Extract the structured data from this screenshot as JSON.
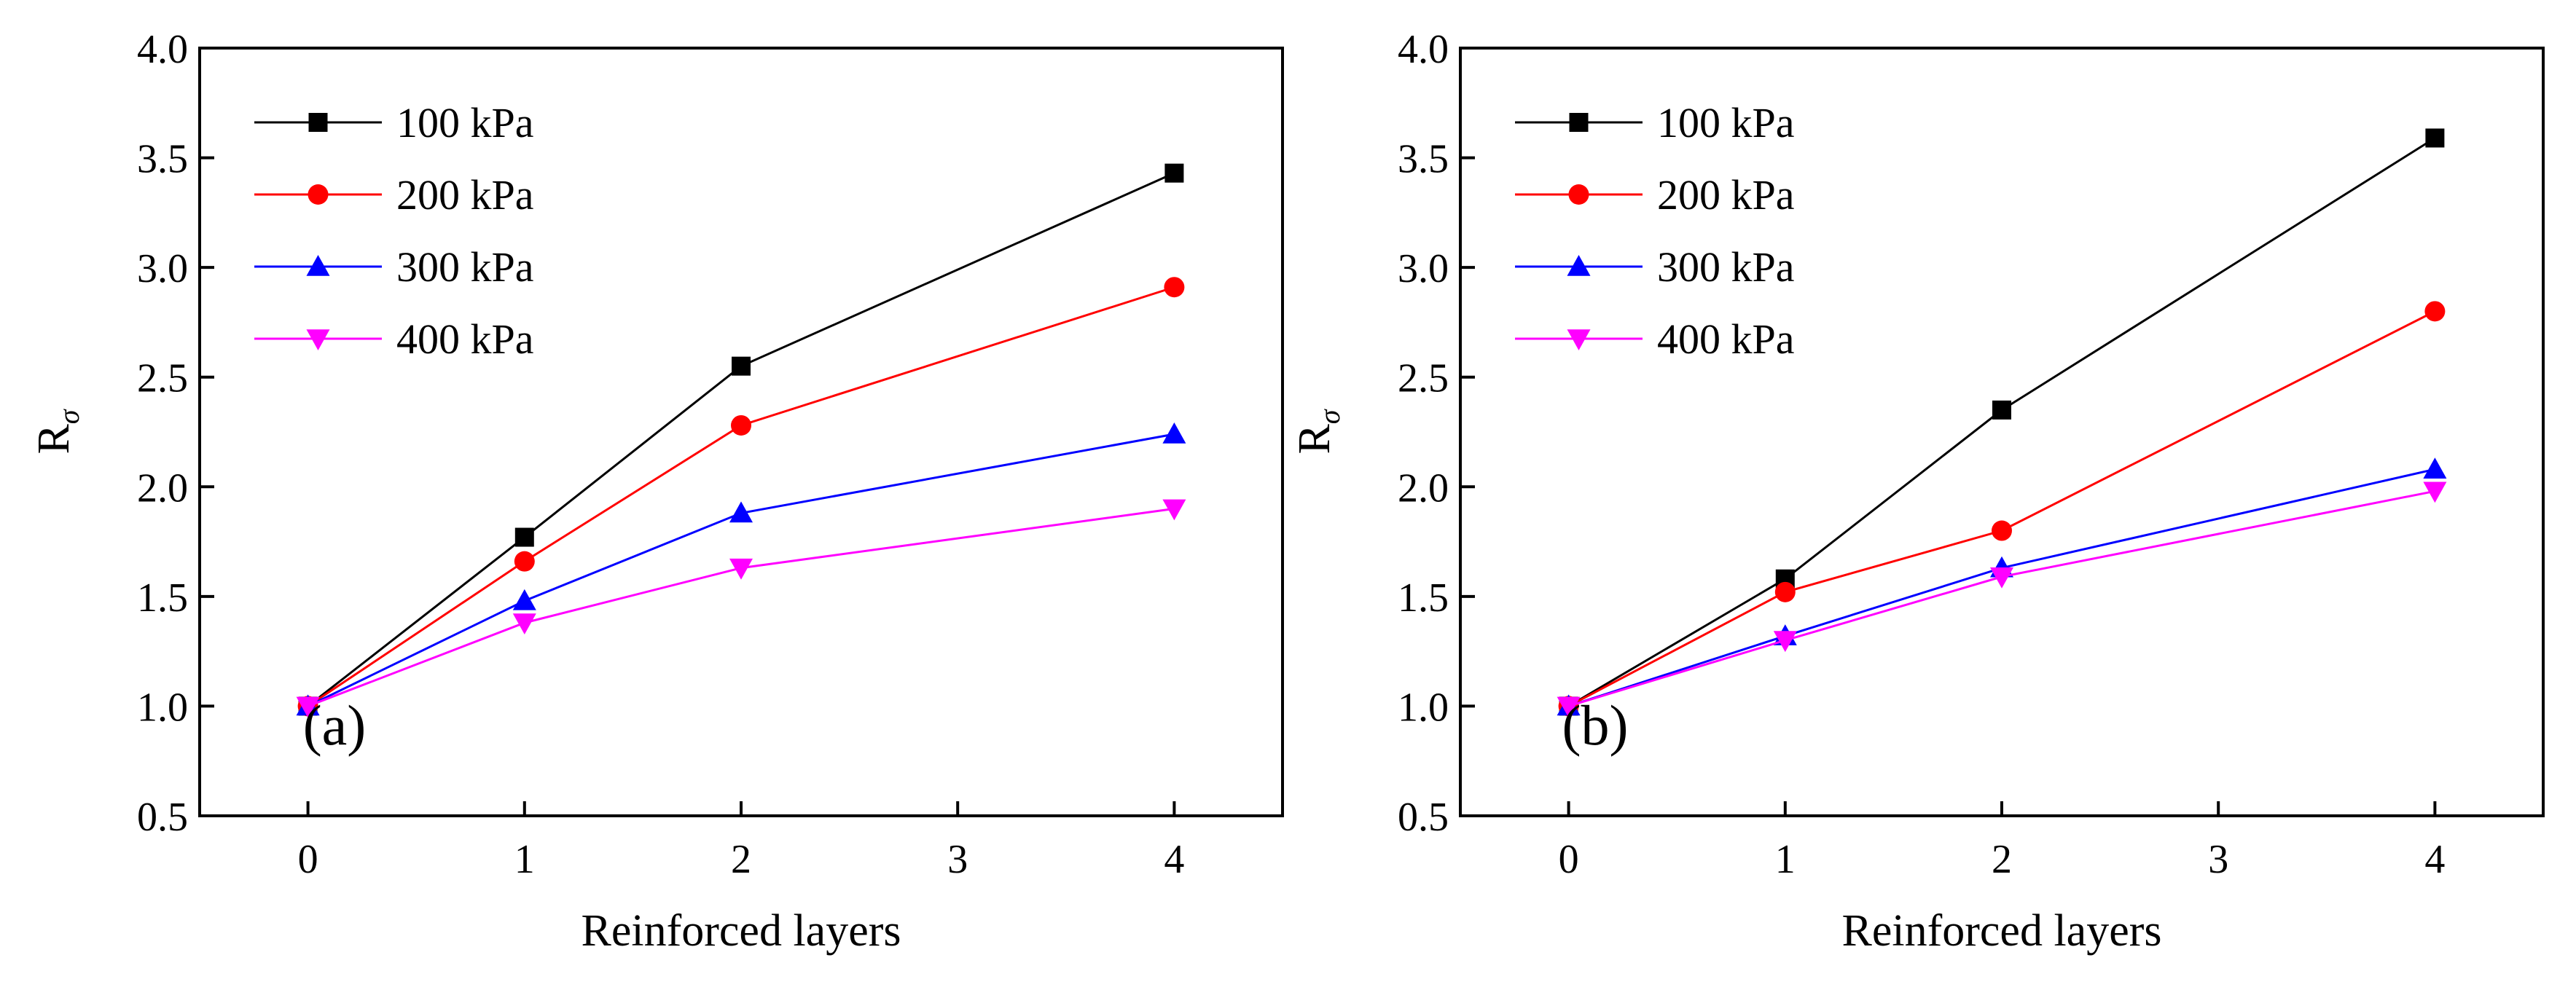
{
  "chart_data": [
    {
      "type": "line",
      "panel_label": "(a)",
      "xlabel": "Reinforced layers",
      "ylabel_main": "R",
      "ylabel_sub": "σ",
      "x": [
        0,
        1,
        2,
        4
      ],
      "xlim": [
        -0.5,
        4.5
      ],
      "ylim": [
        0.5,
        4.0
      ],
      "xticks": [
        0,
        1,
        2,
        3,
        4
      ],
      "xtick_labels": [
        "0",
        "1",
        "2",
        "3",
        "4"
      ],
      "yticks": [
        0.5,
        1.0,
        1.5,
        2.0,
        2.5,
        3.0,
        3.5,
        4.0
      ],
      "ytick_labels": [
        "0.5",
        "1.0",
        "1.5",
        "2.0",
        "2.5",
        "3.0",
        "3.5",
        "4.0"
      ],
      "legend_position": "top-left",
      "series": [
        {
          "name": "100 kPa",
          "color": "#000000",
          "marker": "square",
          "values": [
            1.0,
            1.77,
            2.55,
            3.43
          ]
        },
        {
          "name": "200 kPa",
          "color": "#ff0000",
          "marker": "circle",
          "values": [
            1.0,
            1.66,
            2.28,
            2.91
          ]
        },
        {
          "name": "300 kPa",
          "color": "#0000ff",
          "marker": "triangle-up",
          "values": [
            1.0,
            1.48,
            1.88,
            2.24
          ]
        },
        {
          "name": "400 kPa",
          "color": "#ff00ff",
          "marker": "triangle-down",
          "values": [
            1.0,
            1.38,
            1.63,
            1.9
          ]
        }
      ]
    },
    {
      "type": "line",
      "panel_label": "(b)",
      "xlabel": "Reinforced layers",
      "ylabel_main": "R",
      "ylabel_sub": "σ",
      "x": [
        0,
        1,
        2,
        4
      ],
      "xlim": [
        -0.5,
        4.5
      ],
      "ylim": [
        0.5,
        4.0
      ],
      "xticks": [
        0,
        1,
        2,
        3,
        4
      ],
      "xtick_labels": [
        "0",
        "1",
        "2",
        "3",
        "4"
      ],
      "yticks": [
        0.5,
        1.0,
        1.5,
        2.0,
        2.5,
        3.0,
        3.5,
        4.0
      ],
      "ytick_labels": [
        "0.5",
        "1.0",
        "1.5",
        "2.0",
        "2.5",
        "3.0",
        "3.5",
        "4.0"
      ],
      "legend_position": "top-left",
      "series": [
        {
          "name": "100 kPa",
          "color": "#000000",
          "marker": "square",
          "values": [
            1.0,
            1.58,
            2.35,
            3.59
          ]
        },
        {
          "name": "200 kPa",
          "color": "#ff0000",
          "marker": "circle",
          "values": [
            1.0,
            1.52,
            1.8,
            2.8
          ]
        },
        {
          "name": "300 kPa",
          "color": "#0000ff",
          "marker": "triangle-up",
          "values": [
            1.0,
            1.32,
            1.63,
            2.08
          ]
        },
        {
          "name": "400 kPa",
          "color": "#ff00ff",
          "marker": "triangle-down",
          "values": [
            1.0,
            1.3,
            1.59,
            1.98
          ]
        }
      ]
    }
  ]
}
